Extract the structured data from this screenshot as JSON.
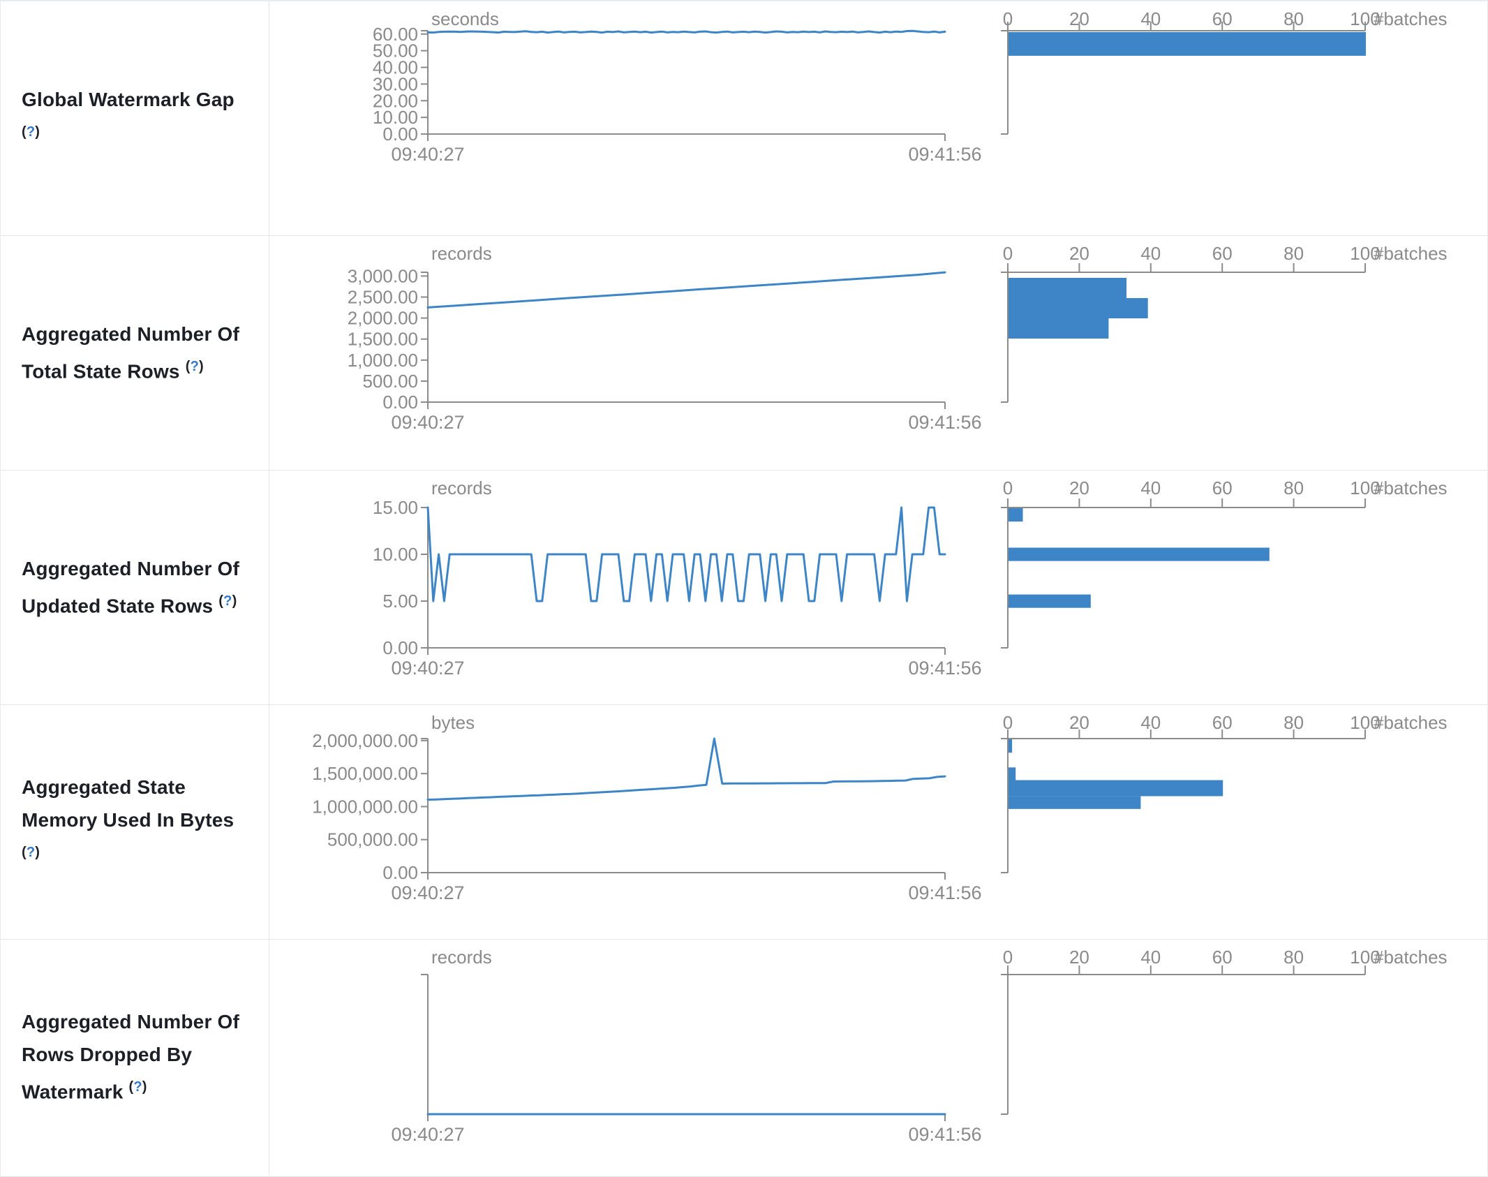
{
  "colors": {
    "series_blue": "#3d85c6",
    "axis_gray": "#8b8b8b",
    "tick_text_gray": "#8a8a8a",
    "title_text": "#1c2026",
    "help_link_blue": "#3377cc",
    "border_gray": "#e3e6eb"
  },
  "histogram_axis": {
    "unit_label": "#batches",
    "tick_labels": [
      "0",
      "20",
      "40",
      "60",
      "80",
      "100"
    ],
    "tick_values": [
      0,
      20,
      40,
      60,
      80,
      100
    ],
    "max": 100
  },
  "chart_data": [
    {
      "title": "Global Watermark Gap",
      "help_label": "(?)",
      "timeline": {
        "type": "line",
        "unit": "seconds",
        "x_start": "09:40:27",
        "x_end": "09:41:56",
        "y_tick_labels": [
          "60.00",
          "50.00",
          "40.00",
          "30.00",
          "20.00",
          "10.00",
          "0.00"
        ],
        "y_tick_values": [
          60,
          50,
          40,
          30,
          20,
          10,
          0
        ],
        "y_axis_max": 62,
        "values": [
          61.0,
          60.9,
          61.3,
          61.4,
          61.5,
          61.4,
          61.3,
          61.5,
          61.6,
          61.5,
          61.4,
          61.3,
          61.1,
          60.9,
          61.4,
          61.3,
          61.2,
          61.5,
          61.7,
          61.3,
          61.1,
          61.4,
          60.9,
          61.2,
          61.5,
          61.0,
          61.3,
          61.4,
          61.0,
          61.2,
          61.5,
          61.3,
          60.9,
          61.4,
          61.2,
          61.6,
          61.0,
          61.3,
          61.5,
          61.1,
          61.4,
          60.9,
          61.2,
          61.5,
          61.0,
          61.3,
          61.1,
          61.5,
          61.2,
          61.0,
          61.4,
          61.6,
          61.1,
          60.9,
          61.3,
          61.5,
          61.0,
          61.2,
          61.4,
          61.1,
          61.5,
          61.3,
          60.9,
          61.2,
          61.6,
          61.4,
          61.0,
          61.3,
          61.1,
          61.5,
          61.2,
          61.4,
          61.0,
          61.6,
          61.3,
          61.1,
          61.4,
          61.2,
          61.5,
          61.0,
          61.3,
          61.6,
          61.2,
          60.9,
          61.4,
          61.1,
          61.5,
          61.3,
          61.8,
          61.9,
          61.6,
          61.3,
          61.1,
          61.5,
          61.0,
          61.4
        ]
      },
      "histogram": {
        "type": "bar",
        "bars": [
          {
            "count": 100,
            "y_frac": 0.013,
            "h_frac": 0.23
          }
        ]
      }
    },
    {
      "title": "Aggregated Number Of Total State Rows",
      "help_label": "(?)",
      "timeline": {
        "type": "line",
        "unit": "records",
        "x_start": "09:40:27",
        "x_end": "09:41:56",
        "y_tick_labels": [
          "3,000.00",
          "2,500.00",
          "2,000.00",
          "1,500.00",
          "1,000.00",
          "500.00",
          "0.00"
        ],
        "y_tick_values": [
          3000,
          2500,
          2000,
          1500,
          1000,
          500,
          0
        ],
        "y_axis_max": 3090,
        "values": [
          2252,
          2295,
          2338,
          2380,
          2424,
          2468,
          2510,
          2552,
          2596,
          2640,
          2684,
          2726,
          2770,
          2812,
          2856,
          2900,
          2942,
          2986,
          3030,
          3088
        ]
      },
      "histogram": {
        "type": "bar",
        "bars": [
          {
            "count": 33,
            "y_frac": 0.043,
            "h_frac": 0.156
          },
          {
            "count": 39,
            "y_frac": 0.199,
            "h_frac": 0.156
          },
          {
            "count": 28,
            "y_frac": 0.355,
            "h_frac": 0.156
          }
        ]
      }
    },
    {
      "title": "Aggregated Number Of Updated State Rows",
      "help_label": "(?)",
      "timeline": {
        "type": "line",
        "unit": "records",
        "x_start": "09:40:27",
        "x_end": "09:41:56",
        "y_tick_labels": [
          "15.00",
          "10.00",
          "5.00",
          "0.00"
        ],
        "y_tick_values": [
          15,
          10,
          5,
          0
        ],
        "y_axis_max": 15,
        "values": [
          15,
          5,
          10,
          5,
          10,
          10,
          10,
          10,
          10,
          10,
          10,
          10,
          10,
          10,
          10,
          10,
          10,
          10,
          10,
          10,
          5,
          5,
          10,
          10,
          10,
          10,
          10,
          10,
          10,
          10,
          5,
          5,
          10,
          10,
          10,
          10,
          5,
          5,
          10,
          10,
          10,
          5,
          10,
          10,
          5,
          10,
          10,
          10,
          5,
          10,
          10,
          5,
          10,
          10,
          5,
          10,
          10,
          5,
          5,
          10,
          10,
          10,
          5,
          10,
          10,
          5,
          10,
          10,
          10,
          10,
          5,
          5,
          10,
          10,
          10,
          10,
          5,
          10,
          10,
          10,
          10,
          10,
          10,
          5,
          10,
          10,
          10,
          15,
          5,
          10,
          10,
          10,
          15,
          15,
          10,
          10
        ]
      },
      "histogram": {
        "type": "bar",
        "bars": [
          {
            "count": 4,
            "y_frac": 0.005,
            "h_frac": 0.095
          },
          {
            "count": 73,
            "y_frac": 0.286,
            "h_frac": 0.095
          },
          {
            "count": 23,
            "y_frac": 0.62,
            "h_frac": 0.095
          }
        ]
      }
    },
    {
      "title": "Aggregated State Memory Used In Bytes",
      "help_label": "(?)",
      "timeline": {
        "type": "line",
        "unit": "bytes",
        "x_start": "09:40:27",
        "x_end": "09:41:56",
        "y_tick_labels": [
          "2,000,000.00",
          "1,500,000.00",
          "1,000,000.00",
          "500,000.00",
          "0.00"
        ],
        "y_tick_values": [
          2000000,
          1500000,
          1000000,
          500000,
          0
        ],
        "y_axis_max": 2030000,
        "values": [
          1105000,
          1108000,
          1112000,
          1118000,
          1122000,
          1128000,
          1132000,
          1138000,
          1142000,
          1148000,
          1152000,
          1158000,
          1162000,
          1168000,
          1172000,
          1178000,
          1182000,
          1188000,
          1192000,
          1198000,
          1205000,
          1212000,
          1218000,
          1225000,
          1232000,
          1240000,
          1248000,
          1255000,
          1262000,
          1270000,
          1278000,
          1285000,
          1295000,
          1305000,
          1318000,
          1330000,
          2030000,
          1348000,
          1350000,
          1350000,
          1351000,
          1351000,
          1352000,
          1352000,
          1353000,
          1353000,
          1354000,
          1354000,
          1355000,
          1355000,
          1356000,
          1380000,
          1381000,
          1382000,
          1383000,
          1384000,
          1385000,
          1387000,
          1389000,
          1392000,
          1395000,
          1420000,
          1424000,
          1428000,
          1450000,
          1458000
        ]
      },
      "histogram": {
        "type": "bar",
        "bars": [
          {
            "count": 1,
            "y_frac": 0.005,
            "h_frac": 0.1
          },
          {
            "count": 2,
            "y_frac": 0.215,
            "h_frac": 0.095
          },
          {
            "count": 60,
            "y_frac": 0.31,
            "h_frac": 0.12
          },
          {
            "count": 37,
            "y_frac": 0.43,
            "h_frac": 0.095
          }
        ]
      }
    },
    {
      "title": "Aggregated Number Of Rows Dropped By Watermark",
      "help_label": "(?)",
      "timeline": {
        "type": "line",
        "unit": "records",
        "x_start": "09:40:27",
        "x_end": "09:41:56",
        "y_tick_labels": [],
        "y_tick_values": [],
        "y_axis_max": 1,
        "values": [
          0,
          0
        ]
      },
      "histogram": {
        "type": "bar",
        "bars": []
      }
    }
  ]
}
